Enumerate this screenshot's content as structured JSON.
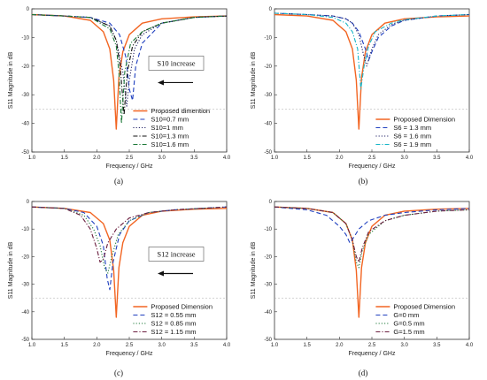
{
  "chart_data": [
    {
      "type": "line",
      "caption": "(a)",
      "xlabel": "Frequency / GHz",
      "ylabel": "S11 Magnitude in dB",
      "xlim": [
        1.0,
        4.0
      ],
      "ylim": [
        -50,
        0
      ],
      "xticks": [
        "1.0",
        "1.5",
        "2.0",
        "2.5",
        "3.0",
        "3.5",
        "4.0"
      ],
      "yticks": [
        "0",
        "-10",
        "-20",
        "-30",
        "-40",
        "-50"
      ],
      "grid": false,
      "legend_position": "bottom-right",
      "annotation": {
        "text": "S10 increase",
        "arrow": "left"
      },
      "series": [
        {
          "name": "Proposed dimention",
          "color": "#f26522",
          "dash": "solid",
          "x": [
            1.0,
            1.5,
            1.9,
            2.1,
            2.2,
            2.26,
            2.3,
            2.34,
            2.4,
            2.5,
            2.7,
            3.0,
            3.5,
            4.0
          ],
          "y": [
            -2,
            -2.5,
            -4,
            -8,
            -14,
            -25,
            -42,
            -24,
            -15,
            -9,
            -5,
            -3.5,
            -2.8,
            -2.5
          ]
        },
        {
          "name": "S10=0.7 mm",
          "color": "#1f3fbf",
          "dash": "dash",
          "x": [
            1.0,
            1.5,
            1.9,
            2.2,
            2.35,
            2.45,
            2.5,
            2.55,
            2.6,
            2.7,
            3.0,
            3.5,
            4.0
          ],
          "y": [
            -2,
            -2.5,
            -3,
            -5,
            -9,
            -17,
            -28,
            -32,
            -20,
            -12,
            -5,
            -3,
            -2.5
          ]
        },
        {
          "name": "S10=1 mm",
          "color": "#222266",
          "dash": "dot",
          "x": [
            1.0,
            1.5,
            1.9,
            2.2,
            2.3,
            2.4,
            2.46,
            2.5,
            2.58,
            2.7,
            3.0,
            3.5,
            4.0
          ],
          "y": [
            -2,
            -2.5,
            -3,
            -6,
            -11,
            -22,
            -34,
            -25,
            -14,
            -9,
            -5,
            -3,
            -2.5
          ]
        },
        {
          "name": "S10=1.3 mm",
          "color": "#111111",
          "dash": "dashdot",
          "x": [
            1.0,
            1.5,
            1.9,
            2.2,
            2.3,
            2.36,
            2.42,
            2.47,
            2.55,
            2.7,
            3.0,
            3.5,
            4.0
          ],
          "y": [
            -2,
            -2.5,
            -3,
            -6,
            -11,
            -20,
            -37,
            -22,
            -13,
            -8,
            -5,
            -3,
            -2.5
          ]
        },
        {
          "name": "S10=1.6 mm",
          "color": "#1f7a3a",
          "dash": "dashdot",
          "x": [
            1.0,
            1.5,
            1.9,
            2.2,
            2.3,
            2.34,
            2.38,
            2.43,
            2.52,
            2.7,
            3.0,
            3.5,
            4.0
          ],
          "y": [
            -2,
            -2.5,
            -3,
            -7,
            -13,
            -22,
            -40,
            -22,
            -12,
            -8,
            -5,
            -3,
            -2.5
          ]
        }
      ]
    },
    {
      "type": "line",
      "caption": "(b)",
      "xlabel": "Frequency / GHz",
      "ylabel": "S11 Magnitude in dB",
      "xlim": [
        1.0,
        4.0
      ],
      "ylim": [
        -50,
        0
      ],
      "xticks": [
        "1.0",
        "1.5",
        "2.0",
        "2.5",
        "3.0",
        "3.5",
        "4.0"
      ],
      "yticks": [
        "0",
        "-10",
        "-20",
        "-30",
        "-40",
        "-50"
      ],
      "grid": false,
      "legend_position": "bottom-right",
      "series": [
        {
          "name": "Proposed Dimension",
          "color": "#f26522",
          "dash": "solid",
          "x": [
            1.0,
            1.5,
            1.9,
            2.1,
            2.2,
            2.26,
            2.3,
            2.34,
            2.4,
            2.5,
            2.7,
            3.0,
            3.5,
            4.0
          ],
          "y": [
            -2,
            -2.5,
            -4,
            -8,
            -14,
            -25,
            -42,
            -24,
            -15,
            -9,
            -5,
            -3.5,
            -2.8,
            -2.5
          ]
        },
        {
          "name": "S6 = 1.3 mm",
          "color": "#1f3fbf",
          "dash": "dash",
          "x": [
            1.0,
            1.5,
            1.9,
            2.1,
            2.2,
            2.3,
            2.4,
            2.45,
            2.5,
            2.6,
            2.8,
            3.0,
            3.5,
            4.0
          ],
          "y": [
            -1.5,
            -2,
            -2.5,
            -3.5,
            -5,
            -8,
            -14,
            -18,
            -15,
            -10,
            -6,
            -4,
            -2.5,
            -2
          ]
        },
        {
          "name": "S6 = 1.6 mm",
          "color": "#222266",
          "dash": "dot",
          "x": [
            1.0,
            1.5,
            1.9,
            2.1,
            2.2,
            2.3,
            2.37,
            2.42,
            2.5,
            2.6,
            2.8,
            3.0,
            3.5,
            4.0
          ],
          "y": [
            -1.5,
            -2,
            -2.5,
            -3.5,
            -5,
            -9,
            -16,
            -20,
            -14,
            -9,
            -5.5,
            -4,
            -2.5,
            -2
          ]
        },
        {
          "name": "S6 = 1.9 mm",
          "color": "#19b6c8",
          "dash": "dashdot",
          "x": [
            1.0,
            1.5,
            1.9,
            2.1,
            2.2,
            2.28,
            2.33,
            2.38,
            2.45,
            2.55,
            2.8,
            3.0,
            3.5,
            4.0
          ],
          "y": [
            -1.5,
            -2,
            -3,
            -5,
            -8,
            -14,
            -28,
            -20,
            -13,
            -8,
            -5,
            -3.8,
            -2.5,
            -2
          ]
        }
      ]
    },
    {
      "type": "line",
      "caption": "(c)",
      "xlabel": "Frequency / GHz",
      "ylabel": "S11 Magnitude in dB",
      "xlim": [
        1.0,
        4.0
      ],
      "ylim": [
        -50,
        0
      ],
      "xticks": [
        "1.0",
        "1.5",
        "2.0",
        "2.5",
        "3.0",
        "3.5",
        "4.0"
      ],
      "yticks": [
        "0",
        "-10",
        "-20",
        "-30",
        "-40",
        "-50"
      ],
      "grid": false,
      "legend_position": "bottom-right",
      "annotation": {
        "text": "S12 increase",
        "arrow": "left"
      },
      "series": [
        {
          "name": "Proposed Dimension",
          "color": "#f26522",
          "dash": "solid",
          "x": [
            1.0,
            1.5,
            1.9,
            2.1,
            2.2,
            2.26,
            2.3,
            2.34,
            2.4,
            2.5,
            2.7,
            3.0,
            3.5,
            4.0
          ],
          "y": [
            -2,
            -2.5,
            -4,
            -8,
            -14,
            -25,
            -42,
            -24,
            -15,
            -9,
            -5,
            -3.5,
            -2.8,
            -2.5
          ]
        },
        {
          "name": "S12 = 0.55 mm",
          "color": "#1f3fbf",
          "dash": "dash",
          "x": [
            1.0,
            1.5,
            1.8,
            2.0,
            2.1,
            2.16,
            2.2,
            2.25,
            2.35,
            2.5,
            2.8,
            3.2,
            3.6,
            4.0
          ],
          "y": [
            -2,
            -2.5,
            -4,
            -9,
            -16,
            -28,
            -32,
            -22,
            -12,
            -7,
            -4,
            -3,
            -2.5,
            -2
          ]
        },
        {
          "name": "S12 = 0.85 mm",
          "color": "#1f7a3a",
          "dash": "dot",
          "x": [
            1.0,
            1.5,
            1.8,
            1.95,
            2.05,
            2.12,
            2.17,
            2.23,
            2.33,
            2.5,
            2.8,
            3.2,
            3.6,
            4.0
          ],
          "y": [
            -2,
            -2.5,
            -5,
            -10,
            -16,
            -24,
            -26,
            -20,
            -12,
            -7,
            -4,
            -3,
            -2.5,
            -2
          ]
        },
        {
          "name": "S12 = 1.15 mm",
          "color": "#6b1f3f",
          "dash": "dashdot",
          "x": [
            1.0,
            1.5,
            1.75,
            1.9,
            2.0,
            2.05,
            2.1,
            2.17,
            2.3,
            2.5,
            2.8,
            3.2,
            3.6,
            4.0
          ],
          "y": [
            -2,
            -2.5,
            -5,
            -10,
            -17,
            -22,
            -21,
            -15,
            -10,
            -6,
            -4,
            -3,
            -2.5,
            -2
          ]
        }
      ]
    },
    {
      "type": "line",
      "caption": "(d)",
      "xlabel": "Frequency / GHz",
      "ylabel": "S11 Magnitude in dB",
      "xlim": [
        1.0,
        4.0
      ],
      "ylim": [
        -50,
        0
      ],
      "xticks": [
        "1.0",
        "1.5",
        "2.0",
        "2.5",
        "3.0",
        "3.5",
        "4.0"
      ],
      "yticks": [
        "0",
        "-10",
        "-20",
        "-30",
        "-40",
        "-50"
      ],
      "grid": false,
      "legend_position": "bottom-right",
      "series": [
        {
          "name": "Proposed Dimension",
          "color": "#f26522",
          "dash": "solid",
          "x": [
            1.0,
            1.5,
            1.9,
            2.1,
            2.2,
            2.26,
            2.3,
            2.34,
            2.4,
            2.5,
            2.7,
            3.0,
            3.5,
            4.0
          ],
          "y": [
            -2,
            -2.5,
            -4,
            -8,
            -14,
            -25,
            -42,
            -24,
            -15,
            -9,
            -5,
            -3.5,
            -2.8,
            -2.5
          ]
        },
        {
          "name": "G=0 mm",
          "color": "#1f3fbf",
          "dash": "dash",
          "x": [
            1.0,
            1.5,
            1.8,
            2.0,
            2.1,
            2.16,
            2.22,
            2.3,
            2.45,
            2.7,
            3.0,
            3.5,
            4.0
          ],
          "y": [
            -2,
            -3,
            -5,
            -9,
            -12,
            -15,
            -13,
            -10,
            -7,
            -5,
            -4,
            -3,
            -2.5
          ]
        },
        {
          "name": "G=0.5 mm",
          "color": "#1f7a3a",
          "dash": "dot",
          "x": [
            1.0,
            1.5,
            1.9,
            2.1,
            2.2,
            2.26,
            2.3,
            2.35,
            2.45,
            2.7,
            3.0,
            3.5,
            4.0
          ],
          "y": [
            -2,
            -2.5,
            -4,
            -8,
            -14,
            -22,
            -24,
            -18,
            -12,
            -7,
            -5,
            -3.5,
            -3
          ]
        },
        {
          "name": "G=1.5 mm",
          "color": "#6b1f3f",
          "dash": "dashdot",
          "x": [
            1.0,
            1.5,
            1.9,
            2.1,
            2.2,
            2.26,
            2.3,
            2.35,
            2.45,
            2.7,
            3.0,
            3.5,
            4.0
          ],
          "y": [
            -2,
            -2.5,
            -4,
            -8,
            -14,
            -20,
            -22,
            -17,
            -11,
            -7,
            -5,
            -3.5,
            -3
          ]
        }
      ]
    }
  ]
}
